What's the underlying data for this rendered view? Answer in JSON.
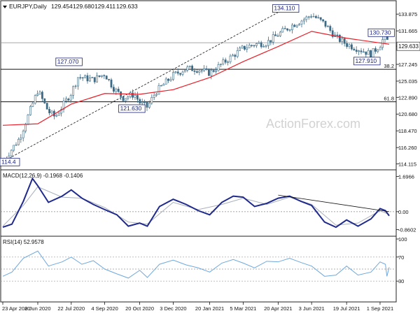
{
  "header": {
    "symbol": "EURJPY,Daily",
    "open": "129.454",
    "high": "129.680",
    "low": "129.411",
    "close": "129.633"
  },
  "watermark": "ActionForex.com",
  "colors": {
    "candle_fill": "#ffffff",
    "candle_outline": "#3d6b86",
    "ma": "#e8202a",
    "macd_line": "#1f2a8c",
    "macd_signal": "#a8b0ba",
    "rsi_line": "#6fa8dc",
    "trendline": "#111111",
    "level_line": "#111111",
    "label_box": "#1a237e"
  },
  "chart_data": [
    {
      "type": "candlestick",
      "title": "EURJPY,Daily",
      "series": [
        {
          "name": "price",
          "x": [
            "23 Apr 2020",
            "15 May 2020",
            "8 Jun 2020",
            "22 Jun 2020",
            "1 Jul 2020",
            "22 Jul 2020",
            "31 Jul 2020",
            "20 Aug 2020",
            "4 Sep 2020",
            "15 Sep 2020",
            "28 Sep 2020",
            "13 Oct 2020",
            "20 Oct 2020",
            "30 Oct 2020",
            "10 Nov 2020",
            "3 Dec 2020",
            "20 Dec 2020",
            "4 Jan 2021",
            "20 Jan 2021",
            "5 Feb 2021",
            "5 Mar 2021",
            "20 Mar 2021",
            "5 Apr 2021",
            "20 Apr 2021",
            "10 May 2021",
            "28 May 2021",
            "3 Jun 2021",
            "20 Jun 2021",
            "5 Jul 2021",
            "19 Jul 2021",
            "3 Aug 2021",
            "20 Aug 2021",
            "1 Sep 2021",
            "8 Sep 2021",
            "13 Sep 2021"
          ],
          "y": [
            114.4,
            117.5,
            123.8,
            121.0,
            120.3,
            123.5,
            125.6,
            125.2,
            126.0,
            124.2,
            122.8,
            123.3,
            122.2,
            121.6,
            123.6,
            125.8,
            126.7,
            126.6,
            126.1,
            127.3,
            129.4,
            129.9,
            130.1,
            131.2,
            132.5,
            133.4,
            133.8,
            132.6,
            130.8,
            129.9,
            129.3,
            128.6,
            129.8,
            131.2,
            129.6
          ]
        }
      ],
      "moving_average": {
        "x": [
          "23 Apr 2020",
          "8 Jun 2020",
          "22 Jul 2020",
          "4 Sep 2020",
          "20 Oct 2020",
          "3 Dec 2020",
          "20 Jan 2021",
          "5 Mar 2021",
          "20 Apr 2021",
          "3 Jun 2021",
          "19 Jul 2021",
          "13 Sep 2021"
        ],
        "y": [
          119.2,
          119.4,
          122.0,
          123.4,
          123.3,
          123.9,
          125.5,
          127.6,
          129.6,
          131.6,
          130.7,
          129.9
        ]
      },
      "price_labels": [
        "134.110",
        "130.730",
        "127.910",
        "127.070",
        "121.630",
        "114.4"
      ],
      "horizontal_levels": [
        {
          "value": 126.6,
          "label": "38.2"
        },
        {
          "value": 122.3,
          "label": "61.8"
        },
        {
          "value": 130.1,
          "label": ""
        }
      ],
      "trendline": {
        "x": [
          "23 Apr 2020",
          "20 Apr 2021"
        ],
        "y": [
          114.4,
          134.11
        ],
        "style": "dashed"
      },
      "y_ticks": [
        "133.875",
        "131.665",
        "129.633",
        "127.245",
        "125.035",
        "122.890",
        "120.680",
        "118.470",
        "116.260",
        "114.115"
      ],
      "current_price": "129.633",
      "ylim": [
        113.6,
        135.0
      ],
      "x_ticks": [
        "23 Apr 2020",
        "8 Jun 2020",
        "22 Jul 2020",
        "4 Sep 2020",
        "20 Oct 2020",
        "3 Dec 2020",
        "20 Jan 2021",
        "5 Mar 2021",
        "20 Apr 2021",
        "3 Jun 2021",
        "19 Jul 2021",
        "1 Sep 2021"
      ],
      "grid": false
    },
    {
      "type": "line",
      "title": "MACD(12,26,9) -0.1968 -0.1406",
      "series": [
        {
          "name": "MACD",
          "x": [
            "23 Apr 2020",
            "5 May 2020",
            "20 May 2020",
            "1 Jun 2020",
            "8 Jun 2020",
            "22 Jun 2020",
            "10 Jul 2020",
            "22 Jul 2020",
            "5 Aug 2020",
            "20 Aug 2020",
            "4 Sep 2020",
            "20 Sep 2020",
            "5 Oct 2020",
            "20 Oct 2020",
            "30 Oct 2020",
            "15 Nov 2020",
            "3 Dec 2020",
            "20 Dec 2020",
            "5 Jan 2021",
            "20 Jan 2021",
            "5 Feb 2021",
            "20 Feb 2021",
            "5 Mar 2021",
            "20 Mar 2021",
            "5 Apr 2021",
            "20 Apr 2021",
            "5 May 2021",
            "20 May 2021",
            "3 Jun 2021",
            "20 Jun 2021",
            "5 Jul 2021",
            "19 Jul 2021",
            "3 Aug 2021",
            "20 Aug 2021",
            "1 Sep 2021",
            "8 Sep 2021",
            "13 Sep 2021"
          ],
          "y": [
            -0.75,
            -0.6,
            0.5,
            1.6,
            1.25,
            0.45,
            0.75,
            1.05,
            0.65,
            0.35,
            0.1,
            -0.15,
            -0.7,
            -0.55,
            -0.7,
            0.25,
            0.6,
            0.35,
            0.05,
            -0.15,
            0.45,
            0.75,
            0.7,
            0.25,
            0.4,
            0.65,
            0.75,
            0.5,
            0.3,
            -0.5,
            -0.75,
            -0.4,
            -0.7,
            -0.35,
            0.15,
            0.05,
            -0.2
          ]
        },
        {
          "name": "Signal",
          "x": [
            "23 Apr 2020",
            "20 May 2020",
            "8 Jun 2020",
            "10 Jul 2020",
            "5 Aug 2020",
            "4 Sep 2020",
            "5 Oct 2020",
            "30 Oct 2020",
            "3 Dec 2020",
            "5 Jan 2021",
            "5 Feb 2021",
            "5 Mar 2021",
            "5 Apr 2021",
            "5 May 2021",
            "3 Jun 2021",
            "5 Jul 2021",
            "3 Aug 2021",
            "1 Sep 2021",
            "13 Sep 2021"
          ],
          "y": [
            -0.7,
            0.3,
            1.2,
            0.7,
            0.65,
            0.2,
            -0.5,
            -0.6,
            0.45,
            0.1,
            0.35,
            0.65,
            0.35,
            0.7,
            0.35,
            -0.65,
            -0.55,
            0.05,
            -0.14
          ]
        }
      ],
      "zero_line": "0.00",
      "trendline": {
        "x": [
          "20 Apr 2021",
          "13 Sep 2021"
        ],
        "y": [
          0.8,
          0.0
        ],
        "style": "solid"
      },
      "y_ticks": [
        "1.6966",
        "0.00",
        "-0.8602"
      ],
      "ylim": [
        -1.05,
        1.85
      ]
    },
    {
      "type": "line",
      "title": "RSI(14) 52.9578",
      "series": [
        {
          "name": "RSI",
          "x": [
            "23 Apr 2020",
            "5 May 2020",
            "20 May 2020",
            "8 Jun 2020",
            "22 Jun 2020",
            "10 Jul 2020",
            "22 Jul 2020",
            "5 Aug 2020",
            "20 Aug 2020",
            "4 Sep 2020",
            "20 Sep 2020",
            "5 Oct 2020",
            "20 Oct 2020",
            "30 Oct 2020",
            "15 Nov 2020",
            "3 Dec 2020",
            "20 Dec 2020",
            "5 Jan 2021",
            "20 Jan 2021",
            "5 Feb 2021",
            "20 Feb 2021",
            "5 Mar 2021",
            "20 Mar 2021",
            "5 Apr 2021",
            "20 Apr 2021",
            "5 May 2021",
            "20 May 2021",
            "3 Jun 2021",
            "20 Jun 2021",
            "5 Jul 2021",
            "19 Jul 2021",
            "3 Aug 2021",
            "20 Aug 2021",
            "1 Sep 2021",
            "8 Sep 2021",
            "10 Sep 2021",
            "13 Sep 2021"
          ],
          "y": [
            38,
            45,
            68,
            80,
            55,
            62,
            70,
            58,
            64,
            50,
            42,
            35,
            48,
            36,
            58,
            65,
            57,
            52,
            45,
            60,
            66,
            60,
            52,
            63,
            62,
            68,
            61,
            55,
            38,
            40,
            55,
            40,
            45,
            62,
            58,
            38,
            53
          ]
        }
      ],
      "levels": [
        "70",
        "50",
        "30"
      ],
      "y_ticks": [
        "100",
        "70",
        "30",
        "0"
      ],
      "ylim": [
        0,
        100
      ]
    }
  ]
}
